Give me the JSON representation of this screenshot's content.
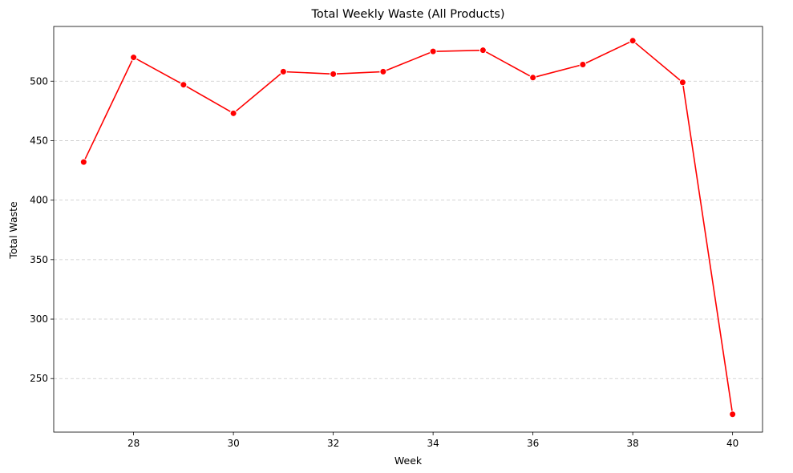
{
  "chart_data": {
    "type": "line",
    "title": "Total Weekly Waste (All Products)",
    "xlabel": "Week",
    "ylabel": "Total Waste",
    "xlim": [
      26.4,
      40.6
    ],
    "ylim": [
      205,
      546
    ],
    "xticks": [
      28,
      30,
      32,
      34,
      36,
      38,
      40
    ],
    "yticks": [
      250,
      300,
      350,
      400,
      450,
      500
    ],
    "grid": {
      "y": true,
      "x": false,
      "style": "dashed"
    },
    "series": [
      {
        "color": "#ff0000",
        "marker": "circle",
        "x": [
          27,
          28,
          29,
          30,
          31,
          32,
          33,
          34,
          35,
          36,
          37,
          38,
          39,
          40
        ],
        "y": [
          432,
          520,
          497,
          473,
          508,
          506,
          508,
          525,
          526,
          503,
          514,
          534,
          499,
          220
        ]
      }
    ]
  }
}
